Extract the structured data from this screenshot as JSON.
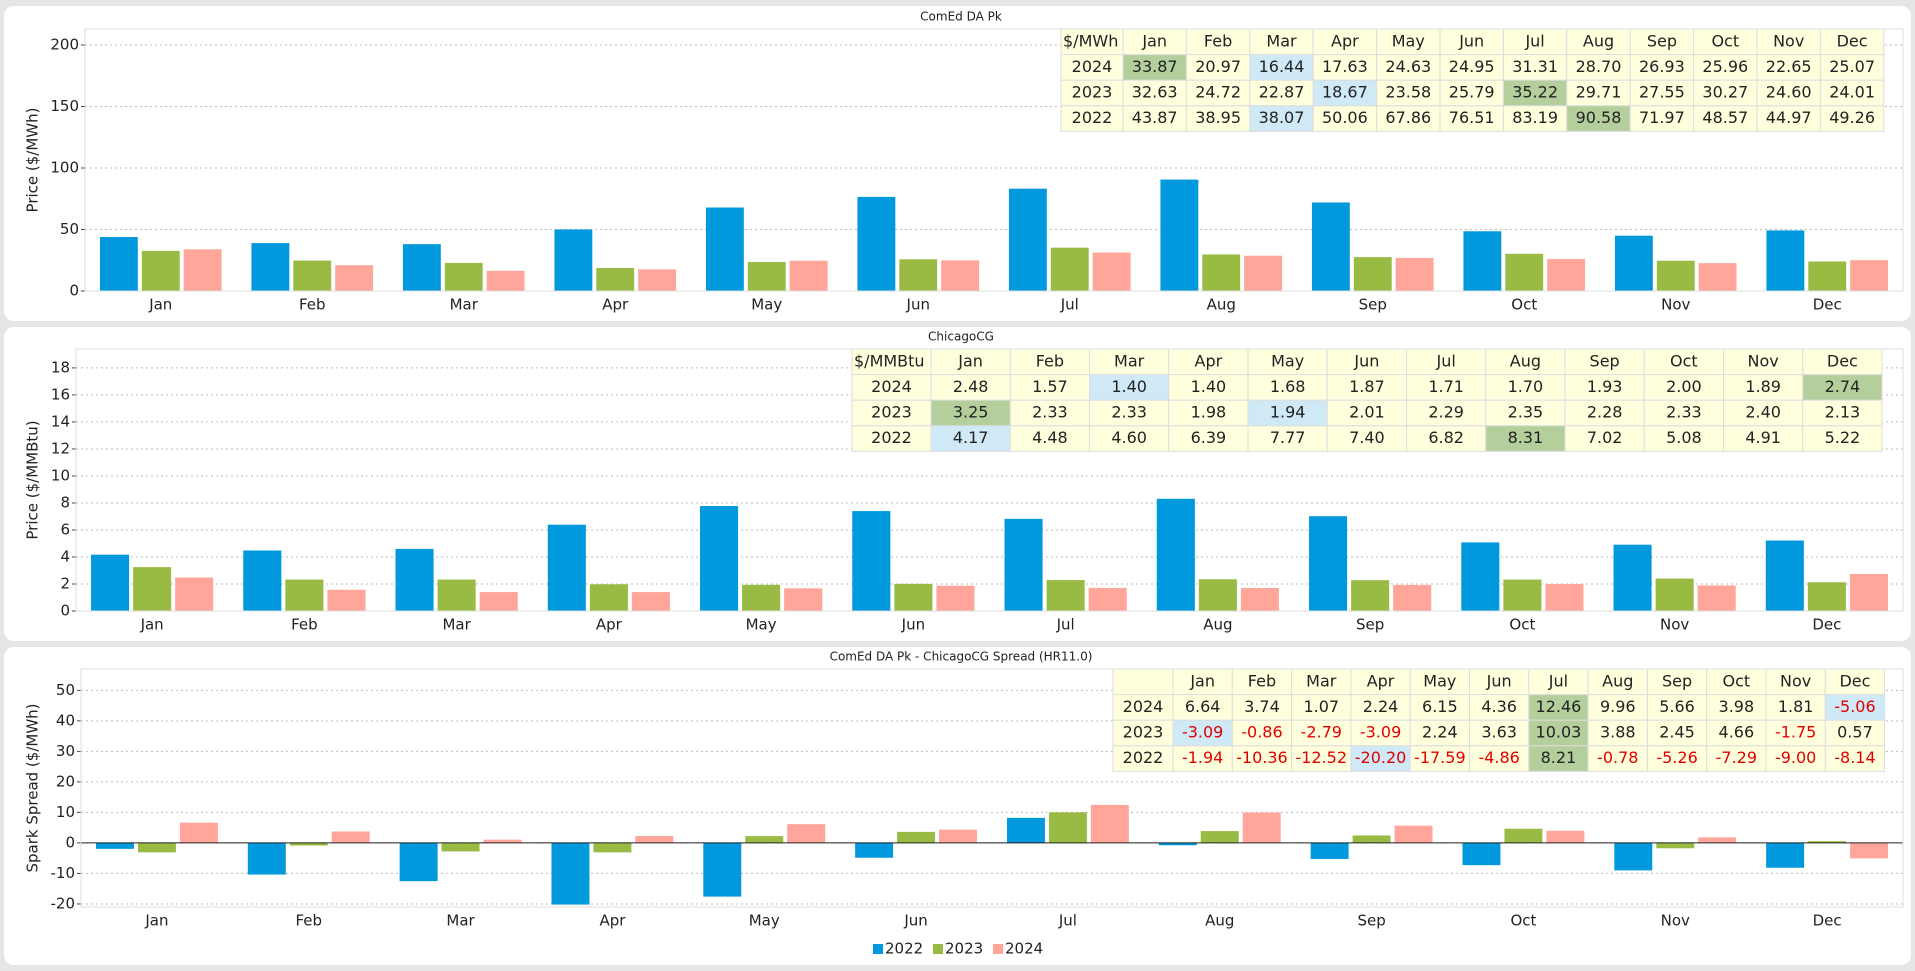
{
  "chart_data": [
    {
      "type": "bar",
      "title": "ComEd DA Pk",
      "ylabel": "Price ($/MWh)",
      "table_header": "$/MWh",
      "categories": [
        "Jan",
        "Feb",
        "Mar",
        "Apr",
        "May",
        "Jun",
        "Jul",
        "Aug",
        "Sep",
        "Oct",
        "Nov",
        "Dec"
      ],
      "series": [
        {
          "name": "2022",
          "color": "#0099dd",
          "values": [
            43.87,
            38.95,
            38.07,
            50.06,
            67.86,
            76.51,
            83.19,
            90.58,
            71.97,
            48.57,
            44.97,
            49.26
          ],
          "value_labels": [
            "43.87",
            "38.95",
            "38.07",
            "50.06",
            "67.86",
            "76.51",
            "83.19",
            "90.58",
            "71.97",
            "48.57",
            "44.97",
            "49.26"
          ]
        },
        {
          "name": "2023",
          "color": "#99bb44",
          "values": [
            32.63,
            24.72,
            22.87,
            18.67,
            23.58,
            25.79,
            35.22,
            29.71,
            27.55,
            30.27,
            24.6,
            24.01
          ],
          "value_labels": [
            "32.63",
            "24.72",
            "22.87",
            "18.67",
            "23.58",
            "25.79",
            "35.22",
            "29.71",
            "27.55",
            "30.27",
            "24.60",
            "24.01"
          ]
        },
        {
          "name": "2024",
          "color": "#ffa599",
          "values": [
            33.87,
            20.97,
            16.44,
            17.63,
            24.63,
            24.95,
            31.31,
            28.7,
            26.93,
            25.96,
            22.65,
            25.07
          ],
          "value_labels": [
            "33.87",
            "20.97",
            "16.44",
            "17.63",
            "24.63",
            "24.95",
            "31.31",
            "28.70",
            "26.93",
            "25.96",
            "22.65",
            "25.07"
          ]
        }
      ],
      "ylim": [
        0,
        213
      ],
      "yticks": [
        0,
        50,
        100,
        150,
        200
      ],
      "grid": true
    },
    {
      "type": "bar",
      "title": "ChicagoCG",
      "ylabel": "Price ($/MMBtu)",
      "table_header": "$/MMBtu",
      "categories": [
        "Jan",
        "Feb",
        "Mar",
        "Apr",
        "May",
        "Jun",
        "Jul",
        "Aug",
        "Sep",
        "Oct",
        "Nov",
        "Dec"
      ],
      "series": [
        {
          "name": "2022",
          "color": "#0099dd",
          "values": [
            4.17,
            4.48,
            4.6,
            6.39,
            7.77,
            7.4,
            6.82,
            8.31,
            7.02,
            5.08,
            4.91,
            5.22
          ],
          "value_labels": [
            "4.17",
            "4.48",
            "4.60",
            "6.39",
            "7.77",
            "7.40",
            "6.82",
            "8.31",
            "7.02",
            "5.08",
            "4.91",
            "5.22"
          ]
        },
        {
          "name": "2023",
          "color": "#99bb44",
          "values": [
            3.25,
            2.33,
            2.33,
            1.98,
            1.94,
            2.01,
            2.29,
            2.35,
            2.28,
            2.33,
            2.4,
            2.13
          ],
          "value_labels": [
            "3.25",
            "2.33",
            "2.33",
            "1.98",
            "1.94",
            "2.01",
            "2.29",
            "2.35",
            "2.28",
            "2.33",
            "2.40",
            "2.13"
          ]
        },
        {
          "name": "2024",
          "color": "#ffa599",
          "values": [
            2.48,
            1.57,
            1.4,
            1.4,
            1.68,
            1.87,
            1.71,
            1.7,
            1.93,
            2.0,
            1.89,
            2.74
          ],
          "value_labels": [
            "2.48",
            "1.57",
            "1.40",
            "1.40",
            "1.68",
            "1.87",
            "1.71",
            "1.70",
            "1.93",
            "2.00",
            "1.89",
            "2.74"
          ]
        }
      ],
      "ylim": [
        0,
        19.4
      ],
      "yticks": [
        0,
        2,
        4,
        6,
        8,
        10,
        12,
        14,
        16,
        18
      ],
      "grid": true
    },
    {
      "type": "bar",
      "title": "ComEd DA Pk - ChicagoCG Spread (HR11.0)",
      "ylabel": "Spark Spread ($/MWh)",
      "table_header": "",
      "categories": [
        "Jan",
        "Feb",
        "Mar",
        "Apr",
        "May",
        "Jun",
        "Jul",
        "Aug",
        "Sep",
        "Oct",
        "Nov",
        "Dec"
      ],
      "series": [
        {
          "name": "2022",
          "color": "#0099dd",
          "values": [
            -1.94,
            -10.36,
            -12.52,
            -20.2,
            -17.59,
            -4.86,
            8.21,
            -0.78,
            -5.26,
            -7.29,
            -9.0,
            -8.14
          ],
          "value_labels": [
            "-1.94",
            "-10.36",
            "-12.52",
            "-20.20",
            "-17.59",
            "-4.86",
            "8.21",
            "-0.78",
            "-5.26",
            "-7.29",
            "-9.00",
            "-8.14"
          ]
        },
        {
          "name": "2023",
          "color": "#99bb44",
          "values": [
            -3.09,
            -0.86,
            -2.79,
            -3.09,
            2.24,
            3.63,
            10.03,
            3.88,
            2.45,
            4.66,
            -1.75,
            0.57
          ],
          "value_labels": [
            "-3.09",
            "-0.86",
            "-2.79",
            "-3.09",
            "2.24",
            "3.63",
            "10.03",
            "3.88",
            "2.45",
            "4.66",
            "-1.75",
            "0.57"
          ]
        },
        {
          "name": "2024",
          "color": "#ffa599",
          "values": [
            6.64,
            3.74,
            1.07,
            2.24,
            6.15,
            4.36,
            12.46,
            9.96,
            5.66,
            3.98,
            1.81,
            -5.06
          ],
          "value_labels": [
            "6.64",
            "3.74",
            "1.07",
            "2.24",
            "6.15",
            "4.36",
            "12.46",
            "9.96",
            "5.66",
            "3.98",
            "1.81",
            "-5.06"
          ]
        }
      ],
      "ylim": [
        -21,
        57
      ],
      "yticks": [
        -20,
        -10,
        0,
        10,
        20,
        30,
        40,
        50
      ],
      "grid": true,
      "legend": "bottom"
    }
  ]
}
